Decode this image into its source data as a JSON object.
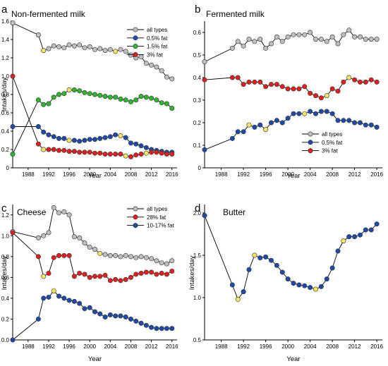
{
  "chart_data": [
    {
      "panel_letter": "a",
      "title": "Non-fermented milk",
      "type": "line",
      "xlabel": "Year",
      "ylabel": "Intakes/day",
      "xlim": [
        1985,
        2017
      ],
      "ylim": [
        0,
        1.6
      ],
      "xticks": [
        1988,
        1992,
        1996,
        2000,
        2004,
        2008,
        2012,
        2016
      ],
      "yticks": [
        0,
        0.2,
        0.4,
        0.6,
        0.8,
        1.0,
        1.2,
        1.4,
        1.6
      ],
      "ytick_labels": [
        "0",
        "0.2",
        "0.4",
        "0.6",
        "0.8",
        "1.0",
        "1.2",
        "1.4",
        "1.6"
      ],
      "legend_position": "top-right",
      "highlight_color": "#f5e663",
      "series": [
        {
          "name": "all types",
          "color": "#bfbfbf",
          "x": [
            1985,
            1990,
            1991,
            1992,
            1993,
            1994,
            1995,
            1996,
            1997,
            1998,
            1999,
            2000,
            2001,
            2002,
            2003,
            2004,
            2005,
            2006,
            2007,
            2008,
            2009,
            2010,
            2011,
            2012,
            2013,
            2014,
            2015,
            2016
          ],
          "y": [
            1.58,
            1.45,
            1.28,
            1.3,
            1.33,
            1.32,
            1.31,
            1.34,
            1.33,
            1.34,
            1.31,
            1.32,
            1.29,
            1.3,
            1.28,
            1.29,
            1.27,
            1.29,
            1.27,
            1.23,
            1.2,
            1.21,
            1.14,
            1.12,
            1.1,
            1.06,
            0.99,
            0.97
          ],
          "highlight": [
            2,
            16
          ]
        },
        {
          "name": "0.5% fat",
          "color": "#1f4aa8",
          "x": [
            1985,
            1990,
            1991,
            1992,
            1993,
            1994,
            1995,
            1996,
            1997,
            1998,
            1999,
            2000,
            2001,
            2002,
            2003,
            2004,
            2005,
            2006,
            2007,
            2008,
            2009,
            2010,
            2011,
            2012,
            2013,
            2014,
            2015,
            2016
          ],
          "y": [
            0.45,
            0.45,
            0.39,
            0.36,
            0.34,
            0.32,
            0.32,
            0.3,
            0.3,
            0.29,
            0.3,
            0.31,
            0.31,
            0.32,
            0.33,
            0.34,
            0.36,
            0.35,
            0.33,
            0.27,
            0.26,
            0.24,
            0.22,
            0.2,
            0.19,
            0.18,
            0.17,
            0.17
          ],
          "highlight": [
            7,
            17
          ]
        },
        {
          "name": "1.5% fat",
          "color": "#2fb52f",
          "x": [
            1985,
            1990,
            1991,
            1992,
            1993,
            1994,
            1995,
            1996,
            1997,
            1998,
            1999,
            2000,
            2001,
            2002,
            2003,
            2004,
            2005,
            2006,
            2007,
            2008,
            2009,
            2010,
            2011,
            2012,
            2013,
            2014,
            2015,
            2016
          ],
          "y": [
            0.15,
            0.74,
            0.69,
            0.7,
            0.77,
            0.8,
            0.81,
            0.85,
            0.85,
            0.84,
            0.82,
            0.81,
            0.8,
            0.79,
            0.78,
            0.77,
            0.77,
            0.75,
            0.74,
            0.72,
            0.74,
            0.78,
            0.77,
            0.76,
            0.74,
            0.71,
            0.7,
            0.65
          ],
          "highlight": [
            7
          ]
        },
        {
          "name": "3% fat",
          "color": "#e02020",
          "x": [
            1985,
            1990,
            1991,
            1992,
            1993,
            1994,
            1995,
            1996,
            1997,
            1998,
            1999,
            2000,
            2001,
            2002,
            2003,
            2004,
            2005,
            2006,
            2007,
            2008,
            2009,
            2010,
            2011,
            2012,
            2013,
            2014,
            2015,
            2016
          ],
          "y": [
            1.0,
            0.26,
            0.2,
            0.2,
            0.2,
            0.19,
            0.19,
            0.18,
            0.18,
            0.17,
            0.17,
            0.17,
            0.16,
            0.16,
            0.15,
            0.15,
            0.15,
            0.15,
            0.13,
            0.12,
            0.14,
            0.15,
            0.16,
            0.17,
            0.17,
            0.16,
            0.15,
            0.15
          ],
          "highlight": [
            2,
            18,
            22
          ]
        }
      ]
    },
    {
      "panel_letter": "b",
      "title": "Fermented milk",
      "type": "line",
      "xlabel": "Year",
      "ylabel": "",
      "xlim": [
        1985,
        2017
      ],
      "ylim": [
        0,
        0.65
      ],
      "xticks": [
        1988,
        1992,
        1996,
        2000,
        2004,
        2008,
        2012,
        2016
      ],
      "yticks": [
        0,
        0.1,
        0.2,
        0.3,
        0.4,
        0.5,
        0.6
      ],
      "ytick_labels": [
        "0",
        "0.1",
        "0.2",
        "0.3",
        "0.4",
        "0.5",
        "0.6"
      ],
      "legend_position": "bottom-right",
      "highlight_color": "#f5e663",
      "series": [
        {
          "name": "all types",
          "color": "#bfbfbf",
          "x": [
            1985,
            1990,
            1991,
            1992,
            1993,
            1994,
            1995,
            1996,
            1997,
            1998,
            1999,
            2000,
            2001,
            2002,
            2003,
            2004,
            2005,
            2006,
            2007,
            2008,
            2009,
            2010,
            2011,
            2012,
            2013,
            2014,
            2015,
            2016
          ],
          "y": [
            0.47,
            0.53,
            0.56,
            0.54,
            0.57,
            0.56,
            0.57,
            0.53,
            0.55,
            0.58,
            0.56,
            0.58,
            0.59,
            0.59,
            0.59,
            0.6,
            0.57,
            0.57,
            0.56,
            0.58,
            0.55,
            0.59,
            0.61,
            0.58,
            0.58,
            0.57,
            0.57,
            0.57
          ],
          "highlight": []
        },
        {
          "name": "0.5% fat",
          "color": "#1f4aa8",
          "x": [
            1985,
            1990,
            1991,
            1992,
            1993,
            1994,
            1995,
            1996,
            1997,
            1998,
            1999,
            2000,
            2001,
            2002,
            2003,
            2004,
            2005,
            2006,
            2007,
            2008,
            2009,
            2010,
            2011,
            2012,
            2013,
            2014,
            2015,
            2016
          ],
          "y": [
            0.08,
            0.13,
            0.16,
            0.16,
            0.19,
            0.18,
            0.19,
            0.17,
            0.2,
            0.21,
            0.2,
            0.22,
            0.24,
            0.24,
            0.24,
            0.25,
            0.24,
            0.25,
            0.25,
            0.24,
            0.21,
            0.21,
            0.21,
            0.2,
            0.2,
            0.19,
            0.19,
            0.18
          ],
          "highlight": [
            4,
            7,
            14
          ]
        },
        {
          "name": "3% fat",
          "color": "#e02020",
          "x": [
            1985,
            1990,
            1991,
            1992,
            1993,
            1994,
            1995,
            1996,
            1997,
            1998,
            1999,
            2000,
            2001,
            2002,
            2003,
            2004,
            2005,
            2006,
            2007,
            2008,
            2009,
            2010,
            2011,
            2012,
            2013,
            2014,
            2015,
            2016
          ],
          "y": [
            0.39,
            0.4,
            0.4,
            0.37,
            0.38,
            0.38,
            0.38,
            0.36,
            0.37,
            0.37,
            0.36,
            0.35,
            0.35,
            0.35,
            0.36,
            0.33,
            0.32,
            0.31,
            0.32,
            0.35,
            0.34,
            0.38,
            0.4,
            0.39,
            0.38,
            0.38,
            0.39,
            0.38
          ],
          "highlight": [
            18,
            22
          ]
        }
      ]
    },
    {
      "panel_letter": "c",
      "title": "Cheese",
      "type": "line",
      "xlabel": "Year",
      "ylabel": "Intakes/day",
      "xlim": [
        1985,
        2017
      ],
      "ylim": [
        0,
        1.3
      ],
      "xticks": [
        1988,
        1992,
        1996,
        2000,
        2004,
        2008,
        2012,
        2016
      ],
      "yticks": [
        0,
        0.2,
        0.4,
        0.6,
        0.8,
        1.0,
        1.2
      ],
      "ytick_labels": [
        "0.0",
        "0.2",
        "0.4",
        "0.6",
        "0.8",
        "1.0",
        "1.2"
      ],
      "legend_position": "top-right",
      "highlight_color": "#f5e663",
      "series": [
        {
          "name": "all types",
          "color": "#bfbfbf",
          "x": [
            1985,
            1990,
            1991,
            1992,
            1993,
            1994,
            1995,
            1996,
            1997,
            1998,
            1999,
            2000,
            2001,
            2002,
            2003,
            2004,
            2005,
            2006,
            2007,
            2008,
            2009,
            2010,
            2011,
            2012,
            2013,
            2014,
            2015,
            2016
          ],
          "y": [
            1.04,
            0.98,
            1.0,
            1.03,
            1.27,
            1.22,
            1.23,
            1.2,
            0.99,
            0.98,
            0.93,
            0.89,
            0.87,
            0.83,
            0.82,
            0.81,
            0.81,
            0.8,
            0.81,
            0.8,
            0.79,
            0.8,
            0.79,
            0.78,
            0.76,
            0.74,
            0.73,
            0.76
          ],
          "highlight": [
            13
          ]
        },
        {
          "name": "28% fat",
          "color": "#e02020",
          "x": [
            1985,
            1990,
            1991,
            1992,
            1993,
            1994,
            1995,
            1996,
            1997,
            1998,
            1999,
            2000,
            2001,
            2002,
            2003,
            2004,
            2005,
            2006,
            2007,
            2008,
            2009,
            2010,
            2011,
            2012,
            2013,
            2014,
            2015,
            2016
          ],
          "y": [
            1.03,
            0.8,
            0.61,
            0.64,
            0.79,
            0.81,
            0.81,
            0.81,
            0.61,
            0.64,
            0.63,
            0.6,
            0.61,
            0.61,
            0.62,
            0.57,
            0.58,
            0.57,
            0.58,
            0.6,
            0.63,
            0.64,
            0.65,
            0.65,
            0.63,
            0.64,
            0.63,
            0.66
          ],
          "highlight": [
            2
          ]
        },
        {
          "name": "10-17% fat",
          "color": "#1f4aa8",
          "x": [
            1985,
            1990,
            1991,
            1992,
            1993,
            1994,
            1995,
            1996,
            1997,
            1998,
            1999,
            2000,
            2001,
            2002,
            2003,
            2004,
            2005,
            2006,
            2007,
            2008,
            2009,
            2010,
            2011,
            2012,
            2013,
            2014,
            2015,
            2016
          ],
          "y": [
            0.0,
            0.2,
            0.4,
            0.41,
            0.47,
            0.42,
            0.4,
            0.38,
            0.37,
            0.35,
            0.3,
            0.31,
            0.27,
            0.25,
            0.22,
            0.24,
            0.23,
            0.23,
            0.22,
            0.2,
            0.18,
            0.16,
            0.14,
            0.12,
            0.11,
            0.11,
            0.11,
            0.11
          ],
          "highlight": [
            4
          ]
        }
      ]
    },
    {
      "panel_letter": "d",
      "title": "Butter",
      "type": "line",
      "xlabel": "Year",
      "ylabel": "Intakes/day",
      "xlim": [
        1985,
        2017
      ],
      "ylim": [
        0.5,
        2.1
      ],
      "xticks": [
        1988,
        1992,
        1996,
        2000,
        2004,
        2008,
        2012,
        2016
      ],
      "yticks": [
        0.5,
        1.0,
        1.5,
        2.0
      ],
      "ytick_labels": [
        "0.5",
        "1.0",
        "1.5",
        "2.0"
      ],
      "legend_position": "none",
      "highlight_color": "#f5e663",
      "series": [
        {
          "name": "",
          "color": "#1f4aa8",
          "x": [
            1985,
            1990,
            1991,
            1992,
            1993,
            1994,
            1995,
            1996,
            1997,
            1998,
            1999,
            2000,
            2001,
            2002,
            2003,
            2004,
            2005,
            2006,
            2007,
            2008,
            2009,
            2010,
            2011,
            2012,
            2013,
            2014,
            2015,
            2016
          ],
          "y": [
            1.97,
            1.15,
            0.98,
            1.07,
            1.33,
            1.5,
            1.47,
            1.48,
            1.44,
            1.38,
            1.3,
            1.22,
            1.17,
            1.15,
            1.14,
            1.12,
            1.1,
            1.13,
            1.22,
            1.35,
            1.55,
            1.67,
            1.72,
            1.72,
            1.74,
            1.8,
            1.8,
            1.87
          ],
          "highlight": [
            2,
            5,
            16,
            21
          ]
        }
      ]
    }
  ]
}
